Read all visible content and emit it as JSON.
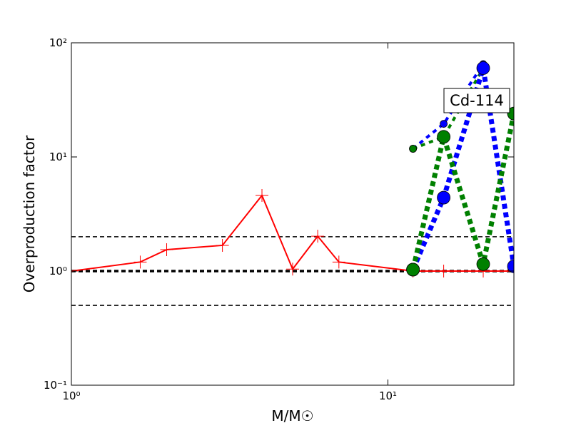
{
  "chart_data": {
    "type": "line",
    "xlabel": "M/M☉",
    "ylabel": "Overproduction factor",
    "xscale": "log",
    "yscale": "log",
    "xlim": [
      1,
      25
    ],
    "ylim": [
      0.1,
      100
    ],
    "xticks": [
      {
        "value": 1,
        "label": "10⁰"
      },
      {
        "value": 10,
        "label": "10¹"
      }
    ],
    "yticks": [
      {
        "value": 0.1,
        "label": "10⁻¹"
      },
      {
        "value": 1,
        "label": "10⁰"
      },
      {
        "value": 10,
        "label": "10¹"
      },
      {
        "value": 100,
        "label": "10²"
      }
    ],
    "hlines": [
      2,
      1,
      0.5
    ],
    "annotation": "Cd-114",
    "series": [
      {
        "color": "#ff0000",
        "linestyle": "solid",
        "marker": "plus",
        "x": [
          1,
          1.65,
          2,
          3,
          4,
          5,
          6,
          7,
          12,
          15,
          20,
          25
        ],
        "values": [
          1.0,
          1.2,
          1.54,
          1.68,
          4.6,
          1.04,
          2.02,
          1.2,
          1.0,
          1.0,
          1.0,
          1.0
        ]
      },
      {
        "color": "#0000ff",
        "linestyle": "dashed",
        "marker": "small-circle",
        "x": [
          12,
          15,
          20
        ],
        "values": [
          11.8,
          19.5,
          65
        ]
      },
      {
        "color": "#008000",
        "linestyle": "dashed",
        "marker": "small-circle",
        "x": [
          12,
          15,
          20
        ],
        "values": [
          11.8,
          15,
          60
        ]
      },
      {
        "color": "#0000ff",
        "linestyle": "dotted",
        "marker": "big-circle",
        "x": [
          12,
          15,
          20,
          25
        ],
        "values": [
          1.03,
          4.4,
          60,
          1.1
        ]
      },
      {
        "color": "#008000",
        "linestyle": "dotted",
        "marker": "big-circle",
        "x": [
          12,
          15,
          20,
          25
        ],
        "values": [
          1.03,
          15,
          1.15,
          24
        ]
      }
    ]
  }
}
